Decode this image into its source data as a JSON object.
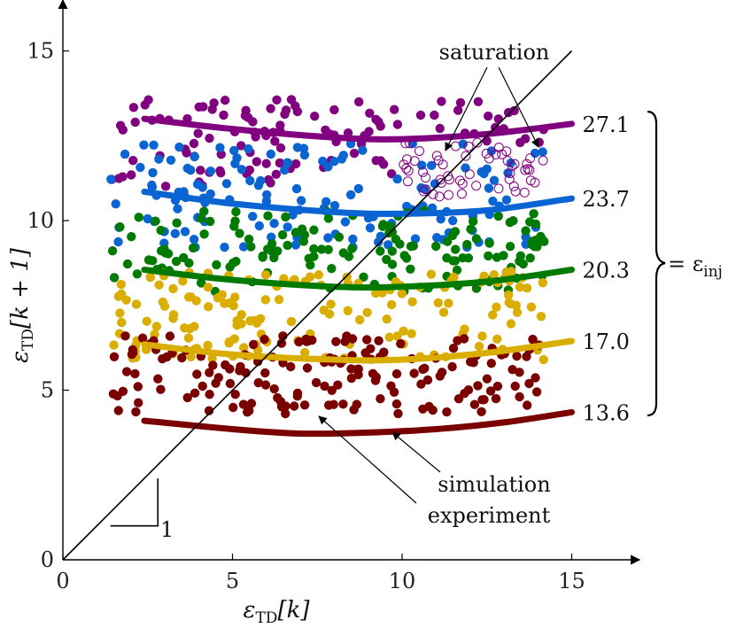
{
  "chart_data": {
    "type": "scatter",
    "xlim": [
      0,
      17
    ],
    "ylim": [
      0,
      16.5
    ],
    "x_ticks": [
      0,
      5,
      10,
      15
    ],
    "y_ticks": [
      0,
      5,
      10,
      15
    ],
    "xlabel_symbol": "ε",
    "xlabel_sub": "TD",
    "xlabel_rest": "[k]",
    "ylabel_symbol": "ε",
    "ylabel_sub": "TD",
    "ylabel_rest": "[k + 1]",
    "grid": false,
    "diagonal": {
      "from": [
        0,
        0
      ],
      "to": [
        15,
        15
      ],
      "color": "#000000"
    },
    "slope_triangle": {
      "corner": [
        2.8,
        1.0
      ],
      "size": 1.4,
      "label": "1"
    },
    "series": [
      {
        "name": "27.1",
        "color": "#800080",
        "simulation": {
          "x": [
            2.4,
            5,
            8,
            10,
            12.5,
            15
          ],
          "y": [
            13.0,
            12.7,
            12.45,
            12.4,
            12.55,
            12.85
          ]
        },
        "experiment": {
          "x_range": [
            1.4,
            14.2
          ],
          "y_range": [
            11.0,
            13.6
          ],
          "count": 130
        }
      },
      {
        "name": "23.7",
        "color": "#0a64d2",
        "simulation": {
          "x": [
            2.4,
            5,
            8,
            10,
            12.5,
            15
          ],
          "y": [
            10.85,
            10.5,
            10.25,
            10.2,
            10.3,
            10.65
          ]
        },
        "experiment": {
          "x_range": [
            1.4,
            14.2
          ],
          "y_range": [
            9.2,
            12.3
          ],
          "count": 140
        }
      },
      {
        "name": "20.3",
        "color": "#007a00",
        "simulation": {
          "x": [
            2.4,
            5,
            8,
            10,
            12.5,
            15
          ],
          "y": [
            8.55,
            8.25,
            8.05,
            8.05,
            8.2,
            8.55
          ]
        },
        "experiment": {
          "x_range": [
            1.4,
            14.2
          ],
          "y_range": [
            7.9,
            10.3
          ],
          "count": 150
        }
      },
      {
        "name": "17.0",
        "color": "#d9ae00",
        "simulation": {
          "x": [
            2.4,
            5,
            8,
            10,
            12.5,
            15
          ],
          "y": [
            6.35,
            6.05,
            5.9,
            5.9,
            6.1,
            6.45
          ]
        },
        "experiment": {
          "x_range": [
            1.4,
            14.2
          ],
          "y_range": [
            5.9,
            8.5
          ],
          "count": 160
        }
      },
      {
        "name": "13.6",
        "color": "#7a0000",
        "simulation": {
          "x": [
            2.4,
            5,
            7,
            9,
            11,
            13,
            15
          ],
          "y": [
            4.1,
            3.85,
            3.72,
            3.75,
            3.85,
            4.05,
            4.35
          ]
        },
        "experiment": {
          "x_range": [
            1.4,
            14.2
          ],
          "y_range": [
            4.3,
            6.6
          ],
          "count": 170
        }
      }
    ],
    "saturation_points": {
      "color": "#800080",
      "x_range": [
        10.0,
        14.2
      ],
      "y_range": [
        10.7,
        12.3
      ],
      "count": 55
    },
    "annotations": {
      "saturation": "saturation",
      "simulation": "simulation",
      "experiment": "experiment",
      "eps_inj": "= ε",
      "eps_inj_sub": "inj"
    }
  }
}
